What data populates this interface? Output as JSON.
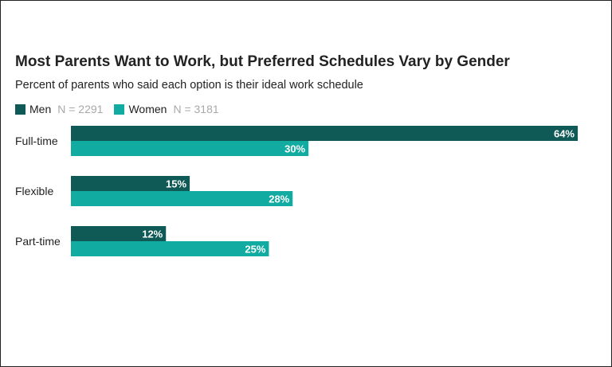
{
  "title": "Most Parents Want to Work, but Preferred Schedules Vary by Gender",
  "subtitle": "Percent of parents who said each option is their ideal work schedule",
  "legend": [
    {
      "name": "Men",
      "n": "N = 2291",
      "color": "#0f5a56"
    },
    {
      "name": "Women",
      "n": "N = 3181",
      "color": "#12aba2"
    }
  ],
  "chart_data": {
    "type": "bar",
    "orientation": "horizontal",
    "categories": [
      "Full-time",
      "Flexible",
      "Part-time"
    ],
    "series": [
      {
        "name": "Men",
        "values": [
          64,
          15,
          12
        ],
        "labels": [
          "64%",
          "15%",
          "12%"
        ],
        "color": "#0f5a56"
      },
      {
        "name": "Women",
        "values": [
          30,
          28,
          25
        ],
        "labels": [
          "30%",
          "28%",
          "25%"
        ],
        "color": "#12aba2"
      }
    ],
    "xlim": [
      0,
      64
    ],
    "grid": false,
    "legend_position": "top-left"
  }
}
